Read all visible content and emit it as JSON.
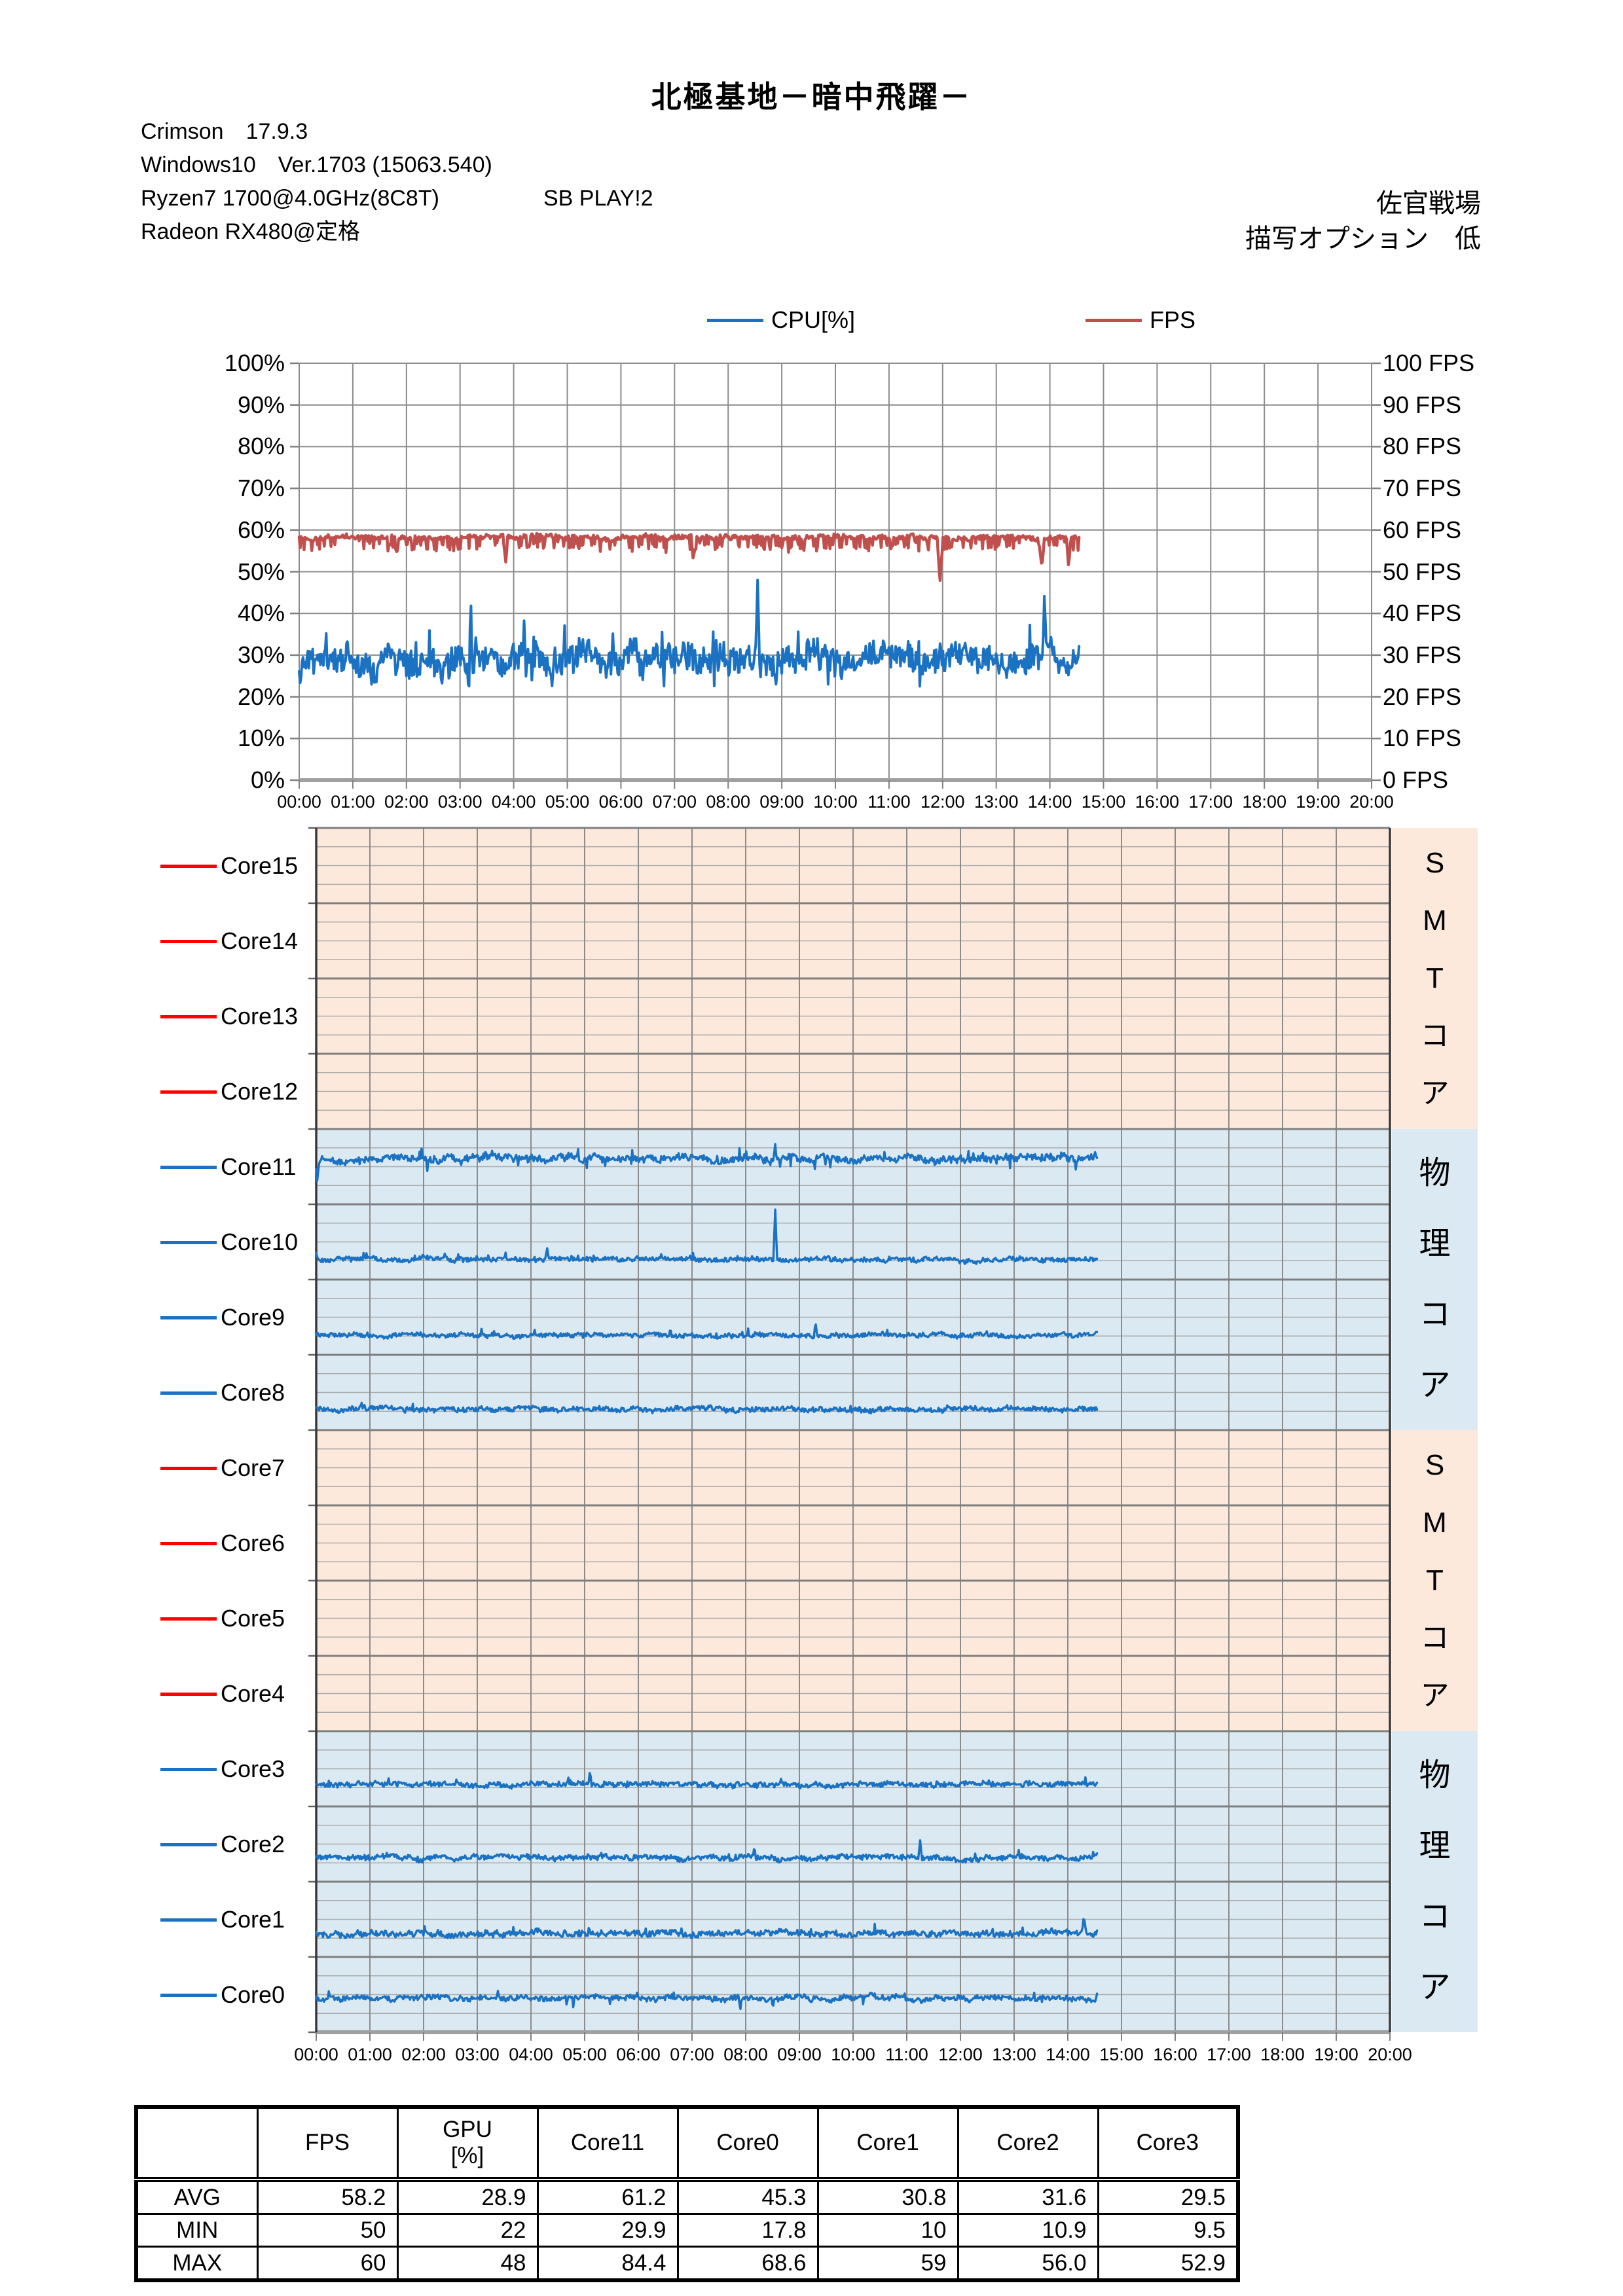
{
  "header": {
    "title": "北極基地－暗中飛躍－",
    "info_lines": [
      "Crimson　17.9.3",
      "Windows10　Ver.1703 (15063.540)",
      "Ryzen7 1700@4.0GHz(8C8T)",
      "Radeon RX480@定格"
    ],
    "info_inline": "SB PLAY!2",
    "right_lines": [
      "佐官戦場",
      "描写オプション　低"
    ]
  },
  "colors": {
    "cpu_blue": "#1B72C2",
    "fps_red": "#C0504D",
    "smt_red": "#FF0000",
    "smt_bg": "#FCE9DC",
    "phys_bg": "#DAE9F2",
    "grid_major": "#8C8C8C",
    "grid_light": "#ABABAB",
    "band_line": "#7E7E7E",
    "axis_line": "#A0A0A0",
    "border_dark": "#3A3A3A"
  },
  "chart_data": [
    {
      "type": "line",
      "title": "CPU[%] and FPS over elapsed time",
      "x_ticks": [
        "00:00",
        "01:00",
        "02:00",
        "03:00",
        "04:00",
        "05:00",
        "06:00",
        "07:00",
        "08:00",
        "09:00",
        "10:00",
        "11:00",
        "12:00",
        "13:00",
        "14:00",
        "15:00",
        "16:00",
        "17:00",
        "18:00",
        "19:00",
        "20:00"
      ],
      "y_left_ticks": [
        "100%",
        "90%",
        "80%",
        "70%",
        "60%",
        "50%",
        "40%",
        "30%",
        "20%",
        "10%",
        "0%"
      ],
      "y_right_ticks": [
        "100 FPS",
        "90 FPS",
        "80 FPS",
        "70 FPS",
        "60 FPS",
        "50 FPS",
        "40 FPS",
        "30 FPS",
        "20 FPS",
        "10 FPS",
        "0 FPS"
      ],
      "x_axis_hours": [
        0,
        20
      ],
      "data_end_hour": 14.55,
      "y_left_range": [
        0,
        100
      ],
      "y_right_range": [
        0,
        100
      ],
      "grid": true,
      "legend_position": "top",
      "legend": [
        {
          "label": "CPU[%]",
          "color": "#1B72C2"
        },
        {
          "label": "FPS",
          "color": "#C0504D"
        }
      ],
      "series": [
        {
          "name": "CPU[%]",
          "color": "#1B72C2",
          "unit": "%",
          "avg": 29,
          "min": 22,
          "max": 48,
          "gen": {
            "mean": 29,
            "noise": 3.0,
            "lo": 22.5,
            "hi": 38.5,
            "upProb": 0.03,
            "upAmp": 8,
            "dnProb": 0.02,
            "dnAmp": 4,
            "events": [
              {
                "t": 0.02,
                "v": 23,
                "w": 0.04
              },
              {
                "t": 3.2,
                "v": 44,
                "w": 0.03
              },
              {
                "t": 8.55,
                "v": 48,
                "w": 0.035
              },
              {
                "t": 13.9,
                "v": 45,
                "w": 0.03
              }
            ]
          }
        },
        {
          "name": "FPS",
          "color": "#C0504D",
          "unit": "FPS",
          "avg": 58.2,
          "min": 50,
          "max": 60,
          "gen": {
            "mean": 58.3,
            "noise": 0.5,
            "lo": 49,
            "hi": 59.2,
            "dnProb": 0.22,
            "dnAmp": 3.2,
            "events": [
              {
                "t": 3.85,
                "v": 52,
                "w": 0.04
              },
              {
                "t": 7.35,
                "v": 52.5,
                "w": 0.04
              },
              {
                "t": 11.95,
                "v": 47.5,
                "w": 0.05
              },
              {
                "t": 13.85,
                "v": 50.5,
                "w": 0.04
              },
              {
                "t": 14.35,
                "v": 51,
                "w": 0.04
              }
            ]
          }
        }
      ]
    },
    {
      "type": "line-bands",
      "title": "Per-core CPU usage (one band per core, 0-100% each)",
      "x_ticks": [
        "00:00",
        "01:00",
        "02:00",
        "03:00",
        "04:00",
        "05:00",
        "06:00",
        "07:00",
        "08:00",
        "09:00",
        "10:00",
        "11:00",
        "12:00",
        "13:00",
        "14:00",
        "15:00",
        "16:00",
        "17:00",
        "18:00",
        "19:00",
        "20:00"
      ],
      "x_axis_hours": [
        0,
        20
      ],
      "data_end_hour": 14.55,
      "band_value_range": [
        0,
        100
      ],
      "bands": [
        {
          "name": "Core15",
          "group": "smt",
          "legend_color": "#FF0000",
          "value": 0
        },
        {
          "name": "Core14",
          "group": "smt",
          "legend_color": "#FF0000",
          "value": 0
        },
        {
          "name": "Core13",
          "group": "smt",
          "legend_color": "#FF0000",
          "value": 0
        },
        {
          "name": "Core12",
          "group": "smt",
          "legend_color": "#FF0000",
          "value": 0
        },
        {
          "name": "Core11",
          "group": "phys",
          "legend_color": "#1B72C2",
          "avg": 61.2,
          "min": 29.9,
          "max": 84.4,
          "gen": {
            "mean": 61,
            "noise": 4.2,
            "lo": 42,
            "hi": 82,
            "upProb": 0.02,
            "upAmp": 12,
            "dnProb": 0.02,
            "dnAmp": 13,
            "events": [
              {
                "t": 0.02,
                "v": 30,
                "w": 0.04
              },
              {
                "t": 8.55,
                "v": 80,
                "w": 0.03
              }
            ]
          }
        },
        {
          "name": "Core10",
          "group": "phys",
          "legend_color": "#1B72C2",
          "gen": {
            "mean": 27,
            "noise": 2.7,
            "lo": 18,
            "hi": 46,
            "upProb": 0.02,
            "upAmp": 8,
            "events": [
              {
                "t": 4.3,
                "v": 42,
                "w": 0.03
              },
              {
                "t": 8.55,
                "v": 93,
                "w": 0.035
              }
            ]
          }
        },
        {
          "name": "Core9",
          "group": "phys",
          "legend_color": "#1B72C2",
          "gen": {
            "mean": 26,
            "noise": 2.5,
            "lo": 17,
            "hi": 44,
            "upProb": 0.02,
            "upAmp": 8,
            "events": [
              {
                "t": 9.3,
                "v": 44,
                "w": 0.03
              }
            ]
          }
        },
        {
          "name": "Core8",
          "group": "phys",
          "legend_color": "#1B72C2",
          "gen": {
            "mean": 28,
            "noise": 2.9,
            "lo": 18,
            "hi": 48,
            "upProb": 0.02,
            "upAmp": 8,
            "events": []
          }
        },
        {
          "name": "Core7",
          "group": "smt",
          "legend_color": "#FF0000",
          "value": 0
        },
        {
          "name": "Core6",
          "group": "smt",
          "legend_color": "#FF0000",
          "value": 0
        },
        {
          "name": "Core5",
          "group": "smt",
          "legend_color": "#FF0000",
          "value": 0
        },
        {
          "name": "Core4",
          "group": "smt",
          "legend_color": "#FF0000",
          "value": 0
        },
        {
          "name": "Core3",
          "group": "phys",
          "legend_color": "#1B72C2",
          "avg": 29.5,
          "min": 9.5,
          "max": 52.9,
          "gen": {
            "mean": 29.5,
            "noise": 3.0,
            "lo": 12,
            "hi": 50,
            "upProb": 0.02,
            "upAmp": 9,
            "events": [
              {
                "t": 5.1,
                "v": 48,
                "w": 0.03
              }
            ]
          }
        },
        {
          "name": "Core2",
          "group": "phys",
          "legend_color": "#1B72C2",
          "avg": 31.6,
          "min": 10.9,
          "max": 56.0,
          "gen": {
            "mean": 31.6,
            "noise": 3.2,
            "lo": 13,
            "hi": 52,
            "upProb": 0.02,
            "upAmp": 9,
            "events": [
              {
                "t": 11.25,
                "v": 55,
                "w": 0.03
              }
            ]
          }
        },
        {
          "name": "Core1",
          "group": "phys",
          "legend_color": "#1B72C2",
          "avg": 30.8,
          "min": 10,
          "max": 59,
          "gen": {
            "mean": 30.8,
            "noise": 3.6,
            "lo": 12,
            "hi": 54,
            "upProb": 0.025,
            "upAmp": 10,
            "events": [
              {
                "t": 14.3,
                "v": 55,
                "w": 0.04
              }
            ]
          }
        },
        {
          "name": "Core0",
          "group": "phys",
          "legend_color": "#1B72C2",
          "avg": 45.3,
          "min": 17.8,
          "max": 68.6,
          "gen": {
            "mean": 45.3,
            "noise": 3.2,
            "lo": 26,
            "hi": 64,
            "upProb": 0.02,
            "upAmp": 9,
            "dnProb": 0.015,
            "dnAmp": 10,
            "events": [
              {
                "t": 7.9,
                "v": 30,
                "w": 0.03
              }
            ]
          }
        }
      ],
      "group_labels": [
        {
          "label": "SMTコア",
          "group": "smt"
        },
        {
          "label": "物理コア",
          "group": "phys"
        },
        {
          "label": "SMTコア",
          "group": "smt"
        },
        {
          "label": "物理コア",
          "group": "phys"
        }
      ]
    }
  ],
  "table": {
    "col_headers": [
      "",
      "FPS",
      "GPU\n[%]",
      "Core11",
      "Core0",
      "Core1",
      "Core2",
      "Core3"
    ],
    "rows": [
      {
        "label": "AVG",
        "values": [
          "58.2",
          "28.9",
          "61.2",
          "45.3",
          "30.8",
          "31.6",
          "29.5"
        ]
      },
      {
        "label": "MIN",
        "values": [
          "50",
          "22",
          "29.9",
          "17.8",
          "10",
          "10.9",
          "9.5"
        ]
      },
      {
        "label": "MAX",
        "values": [
          "60",
          "48",
          "84.4",
          "68.6",
          "59",
          "56.0",
          "52.9"
        ]
      }
    ]
  }
}
